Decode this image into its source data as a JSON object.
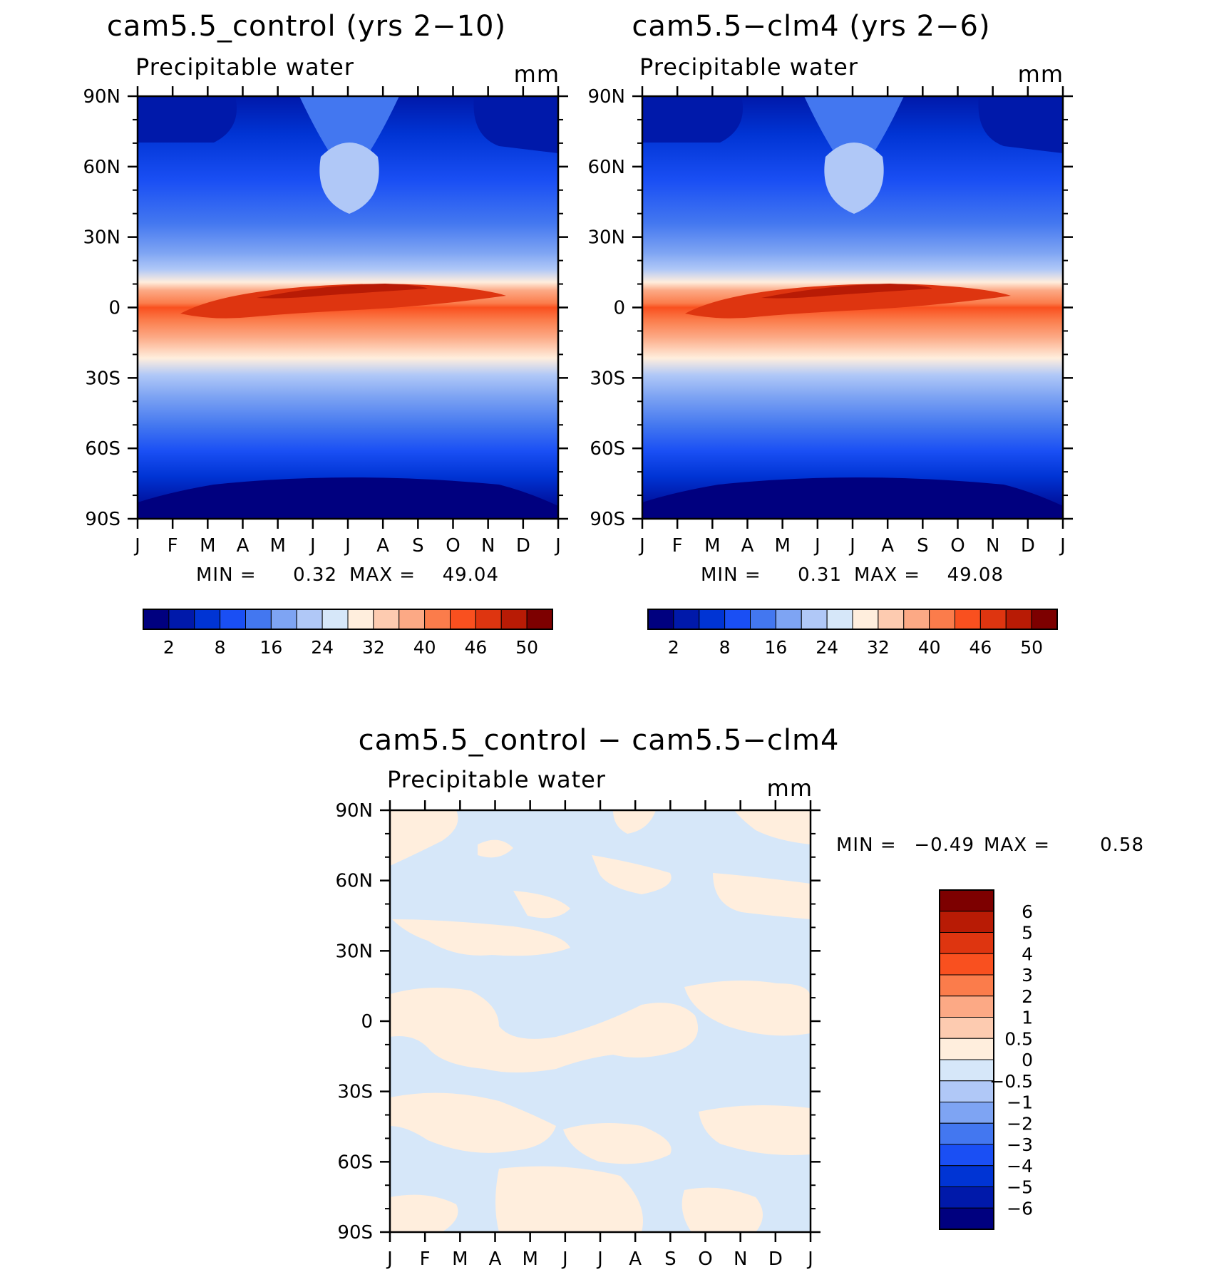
{
  "chart_data": [
    {
      "type": "heatmap",
      "title": "cam5.5_control (yrs 2-10)",
      "field_label": "Precipitable water",
      "units": "mm",
      "x_tick_labels": [
        "J",
        "F",
        "M",
        "A",
        "M",
        "J",
        "J",
        "A",
        "S",
        "O",
        "N",
        "D",
        "J"
      ],
      "y_tick_labels": [
        "90N",
        "60N",
        "30N",
        "0",
        "30S",
        "60S",
        "90S"
      ],
      "ylim": [
        -90,
        90
      ],
      "stats": {
        "min_label": "MIN =",
        "min": "0.32",
        "max_label": "MAX =",
        "max": "49.04"
      },
      "colorbar": {
        "orientation": "horizontal",
        "colors": [
          "#00007f",
          "#0019aa",
          "#0034d4",
          "#1a4ff4",
          "#4377f0",
          "#7ea4f3",
          "#b0c8f7",
          "#d6e7f9",
          "#ffeedd",
          "#fdcbb0",
          "#fca985",
          "#fb7c4b",
          "#f9501f",
          "#de3510",
          "#b81b05",
          "#7d0000"
        ],
        "tick_labels": [
          "2",
          "8",
          "16",
          "24",
          "32",
          "40",
          "46",
          "50"
        ]
      }
    },
    {
      "type": "heatmap",
      "title": "cam5.5-clm4 (yrs 2-6)",
      "field_label": "Precipitable water",
      "units": "mm",
      "x_tick_labels": [
        "J",
        "F",
        "M",
        "A",
        "M",
        "J",
        "J",
        "A",
        "S",
        "O",
        "N",
        "D",
        "J"
      ],
      "y_tick_labels": [
        "90N",
        "60N",
        "30N",
        "0",
        "30S",
        "60S",
        "90S"
      ],
      "ylim": [
        -90,
        90
      ],
      "stats": {
        "min_label": "MIN =",
        "min": "0.31",
        "max_label": "MAX =",
        "max": "49.08"
      },
      "colorbar": {
        "orientation": "horizontal",
        "colors": [
          "#00007f",
          "#0019aa",
          "#0034d4",
          "#1a4ff4",
          "#4377f0",
          "#7ea4f3",
          "#b0c8f7",
          "#d6e7f9",
          "#ffeedd",
          "#fdcbb0",
          "#fca985",
          "#fb7c4b",
          "#f9501f",
          "#de3510",
          "#b81b05",
          "#7d0000"
        ],
        "tick_labels": [
          "2",
          "8",
          "16",
          "24",
          "32",
          "40",
          "46",
          "50"
        ]
      }
    },
    {
      "type": "heatmap",
      "title": "cam5.5_control - cam5.5-clm4",
      "field_label": "Precipitable water",
      "units": "mm",
      "x_tick_labels": [
        "J",
        "F",
        "M",
        "A",
        "M",
        "J",
        "J",
        "A",
        "S",
        "O",
        "N",
        "D",
        "J"
      ],
      "y_tick_labels": [
        "90N",
        "60N",
        "30N",
        "0",
        "30S",
        "60S",
        "90S"
      ],
      "ylim": [
        -90,
        90
      ],
      "stats": {
        "min_label": "MIN =",
        "min": "-0.49",
        "max_label": "MAX =",
        "max": "0.58"
      },
      "colorbar": {
        "orientation": "vertical",
        "colors": [
          "#7d0000",
          "#b81b05",
          "#de3510",
          "#f9501f",
          "#fb7c4b",
          "#fca985",
          "#fdcbb0",
          "#ffeedd",
          "#d6e7f9",
          "#b0c8f7",
          "#7ea4f3",
          "#4377f0",
          "#1a4ff4",
          "#0034d4",
          "#0019aa",
          "#00007f"
        ],
        "tick_labels": [
          "6",
          "5",
          "4",
          "3",
          "2",
          "1",
          "0.5",
          "0",
          "-0.5",
          "-1",
          "-2",
          "-3",
          "-4",
          "-5",
          "-6"
        ]
      }
    }
  ]
}
